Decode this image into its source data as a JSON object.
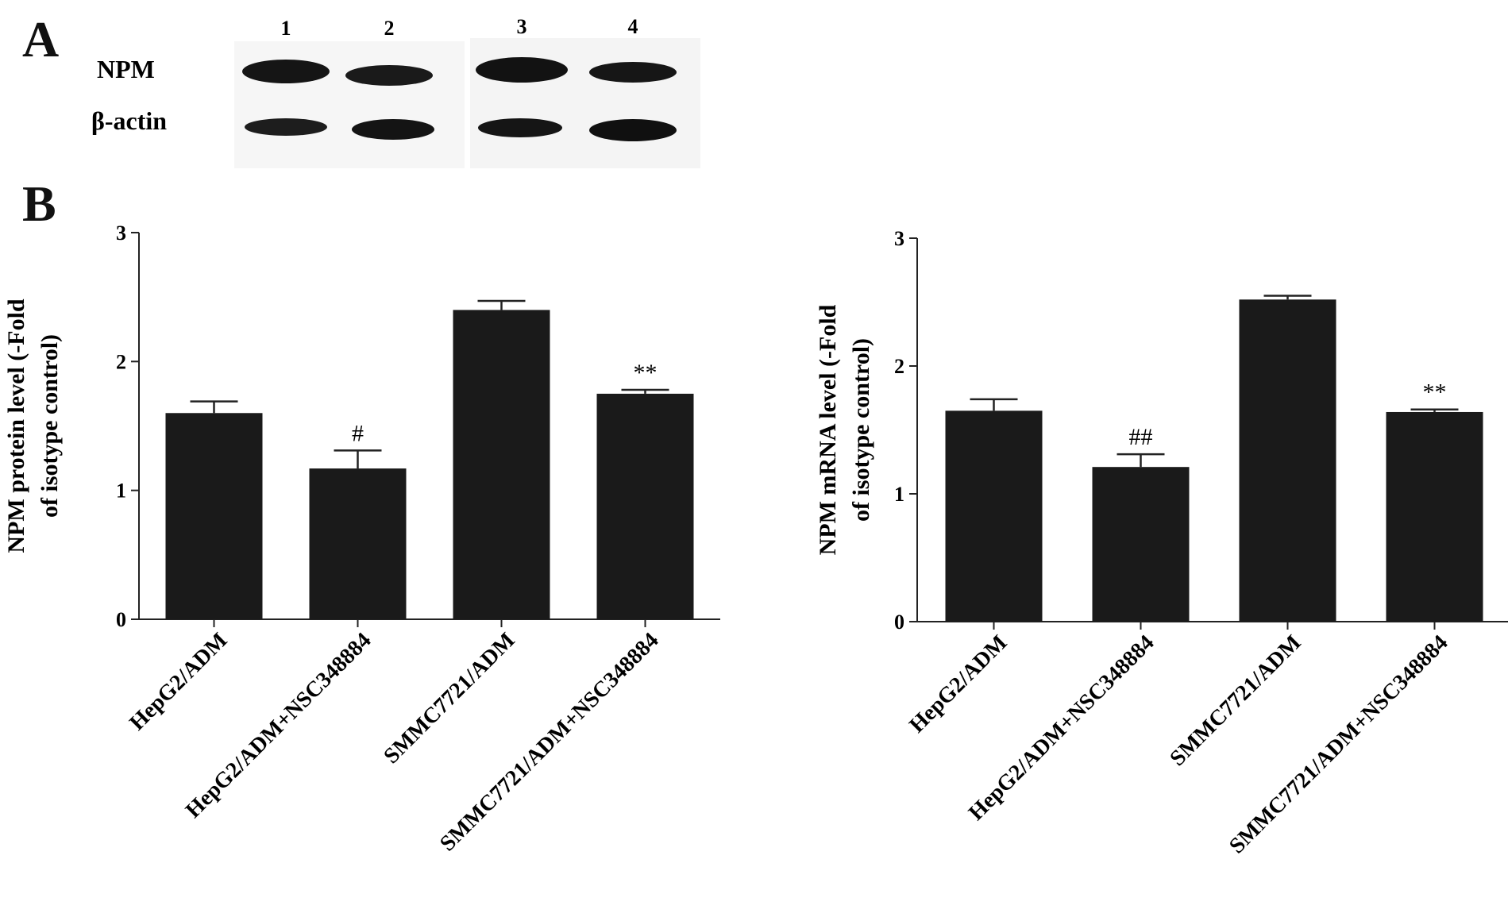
{
  "panel_a": {
    "letter": "A",
    "lane_labels": [
      "1",
      "2",
      "3",
      "4"
    ],
    "row_labels": [
      "NPM",
      "β-actin"
    ]
  },
  "panel_b": {
    "letter": "B"
  },
  "colors": {
    "bar": "#1a1a1a",
    "axis": "#222222",
    "band": "#141414"
  },
  "chart_data": [
    {
      "type": "bar",
      "title": "",
      "xlabel": "",
      "ylabel_lines": [
        "NPM protein level (-Fold",
        "of isotype control)"
      ],
      "categories": [
        "HepG2/ADM",
        "HepG2/ADM+NSC348884",
        "SMMC7721/ADM",
        "SMMC7721/ADM+NSC348884"
      ],
      "values": [
        1.6,
        1.17,
        2.4,
        1.75
      ],
      "errors": [
        0.09,
        0.14,
        0.07,
        0.03
      ],
      "annotations": [
        "",
        "#",
        "",
        "**"
      ],
      "ylim": [
        0,
        3
      ],
      "yticks": [
        "0",
        "1",
        "2",
        "3"
      ]
    },
    {
      "type": "bar",
      "title": "",
      "xlabel": "",
      "ylabel_lines": [
        "NPM mRNA level (-Fold",
        "of isotype control)"
      ],
      "categories": [
        "HepG2/ADM",
        "HepG2/ADM+NSC348884",
        "SMMC7721/ADM",
        "SMMC7721/ADM+NSC348884"
      ],
      "values": [
        1.65,
        1.21,
        2.52,
        1.64
      ],
      "errors": [
        0.09,
        0.1,
        0.03,
        0.02
      ],
      "annotations": [
        "",
        "##",
        "",
        "**"
      ],
      "ylim": [
        0,
        3
      ],
      "yticks": [
        "0",
        "1",
        "2",
        "3"
      ]
    }
  ]
}
